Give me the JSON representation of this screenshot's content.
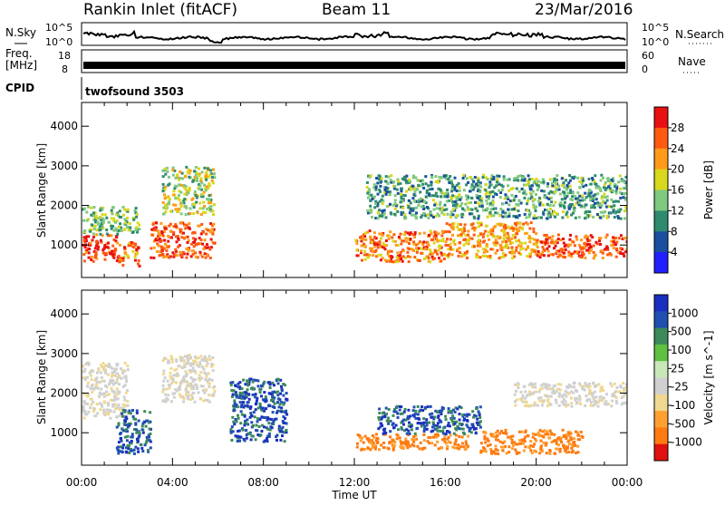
{
  "header": {
    "station": "Rankin Inlet (fitACF)",
    "beam": "Beam 11",
    "date": "23/Mar/2016"
  },
  "nsky_panel": {
    "left_label": "N.Sky",
    "right_label": "N.Search",
    "left_ticks": [
      "10^5",
      "10^0"
    ],
    "right_ticks": [
      "10^5",
      "10^0"
    ],
    "right_legend_style": "dotted"
  },
  "freq_panel": {
    "left_label_1": "Freq.",
    "left_label_2": "[MHz]",
    "left_ticks": [
      "18",
      "8"
    ],
    "right_label": "Nave",
    "right_ticks": [
      "60",
      "0"
    ],
    "right_legend_style": "dotted"
  },
  "cpid_panel": {
    "label": "CPID",
    "value": "twofsound 3503"
  },
  "colors": {
    "power_scale": [
      "#1f1fff",
      "#1a4fa0",
      "#2e8b6e",
      "#7fc97f",
      "#d8d81c",
      "#ff9a1a",
      "#ff5a10",
      "#e81010"
    ],
    "velocity_scale": [
      "#e01010",
      "#ff7a10",
      "#ffa030",
      "#f0d890",
      "#d0d0d0",
      "#c8e8b8",
      "#60c040",
      "#3c8a5a",
      "#2050b0",
      "#1a2fc0"
    ]
  },
  "chart_data": [
    {
      "type": "heatmap",
      "name": "power",
      "xlabel": "",
      "ylabel": "Slant Range [km]",
      "x_range_hours": [
        0,
        24
      ],
      "ylim": [
        180,
        4600
      ],
      "yticks": [
        "1000",
        "2000",
        "3000",
        "4000"
      ],
      "xticks": [
        "00:00",
        "04:00",
        "08:00",
        "12:00",
        "16:00",
        "20:00",
        "00:00"
      ],
      "colorbar_label": "Power [dB]",
      "colorbar_ticks": [
        "4",
        "8",
        "12",
        "16",
        "20",
        "24",
        "28"
      ],
      "colorbar_range": [
        0,
        32
      ],
      "regions": [
        {
          "x0": 0.0,
          "x1": 1.5,
          "y0": 600,
          "y1": 1300,
          "level": 26
        },
        {
          "x0": 1.5,
          "x1": 2.5,
          "y0": 500,
          "y1": 1100,
          "level": 22
        },
        {
          "x0": 0.0,
          "x1": 2.5,
          "y0": 1300,
          "y1": 2000,
          "level": 12
        },
        {
          "x0": 3.0,
          "x1": 5.8,
          "y0": 700,
          "y1": 1600,
          "level": 24
        },
        {
          "x0": 3.5,
          "x1": 5.8,
          "y0": 1800,
          "y1": 3000,
          "level": 14
        },
        {
          "x0": 12.0,
          "x1": 16.0,
          "y0": 600,
          "y1": 1400,
          "level": 22
        },
        {
          "x0": 16.0,
          "x1": 20.0,
          "y0": 700,
          "y1": 1600,
          "level": 20
        },
        {
          "x0": 20.0,
          "x1": 24.0,
          "y0": 700,
          "y1": 1300,
          "level": 24
        },
        {
          "x0": 12.5,
          "x1": 24.0,
          "y0": 1700,
          "y1": 2800,
          "level": 10
        }
      ]
    },
    {
      "type": "heatmap",
      "name": "velocity",
      "xlabel": "Time UT",
      "ylabel": "Slant Range [km]",
      "x_range_hours": [
        0,
        24
      ],
      "ylim": [
        180,
        4600
      ],
      "yticks": [
        "1000",
        "2000",
        "3000",
        "4000"
      ],
      "xticks": [
        "00:00",
        "04:00",
        "08:00",
        "12:00",
        "16:00",
        "20:00",
        "00:00"
      ],
      "colorbar_label": "Velocity [m s^-1]",
      "colorbar_ticks": [
        "1000",
        "500",
        "100",
        "25",
        "-25",
        "-100",
        "-500",
        "-1000"
      ],
      "regions": [
        {
          "x0": 0.0,
          "x1": 2.0,
          "y0": 1400,
          "y1": 2800,
          "level": "grey"
        },
        {
          "x0": 1.5,
          "x1": 3.0,
          "y0": 500,
          "y1": 1600,
          "level": "blue"
        },
        {
          "x0": 3.5,
          "x1": 5.8,
          "y0": 1800,
          "y1": 3000,
          "level": "grey"
        },
        {
          "x0": 6.5,
          "x1": 9.0,
          "y0": 800,
          "y1": 2400,
          "level": "blue"
        },
        {
          "x0": 12.0,
          "x1": 17.0,
          "y0": 600,
          "y1": 1000,
          "level": "orange"
        },
        {
          "x0": 13.0,
          "x1": 17.5,
          "y0": 1000,
          "y1": 1700,
          "level": "blue"
        },
        {
          "x0": 17.5,
          "x1": 22.0,
          "y0": 500,
          "y1": 1100,
          "level": "orange"
        },
        {
          "x0": 19.0,
          "x1": 24.0,
          "y0": 1700,
          "y1": 2300,
          "level": "grey"
        }
      ]
    }
  ]
}
